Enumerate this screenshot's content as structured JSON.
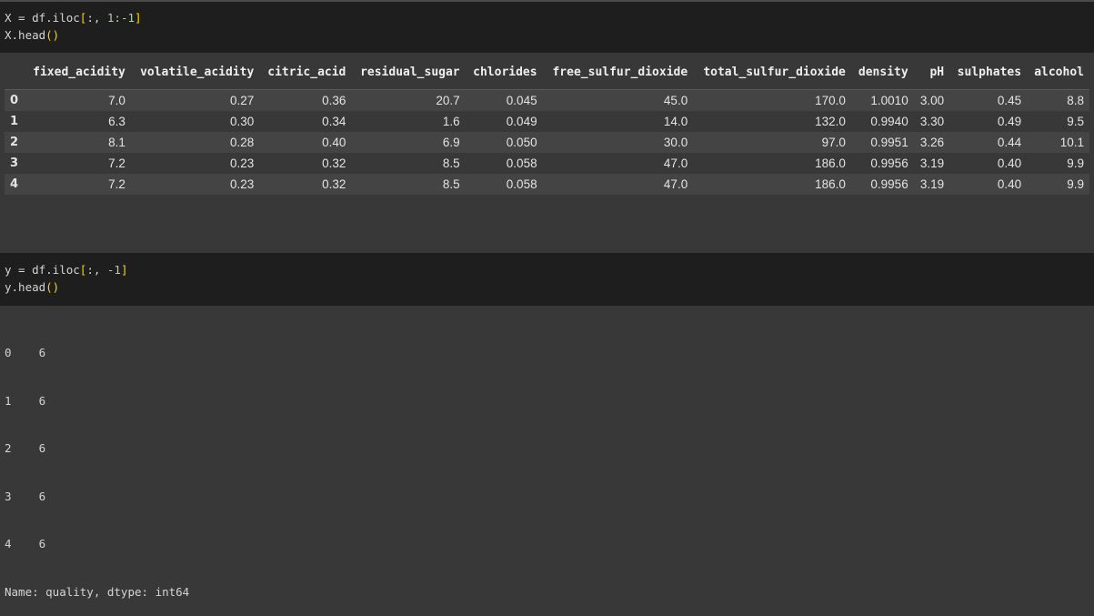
{
  "cell1": {
    "line1_pre": "X = df.iloc",
    "line1_open": "[",
    "line1_mid": ":, ",
    "line1_num": "1:-1",
    "line1_close": "]",
    "line2_pre": "X.head",
    "line2_paren": "()"
  },
  "table": {
    "columns": [
      "",
      "fixed_acidity",
      "volatile_acidity",
      "citric_acid",
      "residual_sugar",
      "chlorides",
      "free_sulfur_dioxide",
      "total_sulfur_dioxide",
      "density",
      "pH",
      "sulphates",
      "alcohol"
    ],
    "rows": [
      [
        "0",
        "7.0",
        "0.27",
        "0.36",
        "20.7",
        "0.045",
        "45.0",
        "170.0",
        "1.0010",
        "3.00",
        "0.45",
        "8.8"
      ],
      [
        "1",
        "6.3",
        "0.30",
        "0.34",
        "1.6",
        "0.049",
        "14.0",
        "132.0",
        "0.9940",
        "3.30",
        "0.49",
        "9.5"
      ],
      [
        "2",
        "8.1",
        "0.28",
        "0.40",
        "6.9",
        "0.050",
        "30.0",
        "97.0",
        "0.9951",
        "3.26",
        "0.44",
        "10.1"
      ],
      [
        "3",
        "7.2",
        "0.23",
        "0.32",
        "8.5",
        "0.058",
        "47.0",
        "186.0",
        "0.9956",
        "3.19",
        "0.40",
        "9.9"
      ],
      [
        "4",
        "7.2",
        "0.23",
        "0.32",
        "8.5",
        "0.058",
        "47.0",
        "186.0",
        "0.9956",
        "3.19",
        "0.40",
        "9.9"
      ]
    ]
  },
  "cell2": {
    "line1_pre": "y = df.iloc",
    "line1_open": "[",
    "line1_mid": ":, ",
    "line1_num": "-1",
    "line1_close": "]",
    "line2_pre": "y.head",
    "line2_paren": "()"
  },
  "output2": {
    "lines": [
      "0    6",
      "1    6",
      "2    6",
      "3    6",
      "4    6",
      "Name: quality, dtype: int64"
    ]
  }
}
